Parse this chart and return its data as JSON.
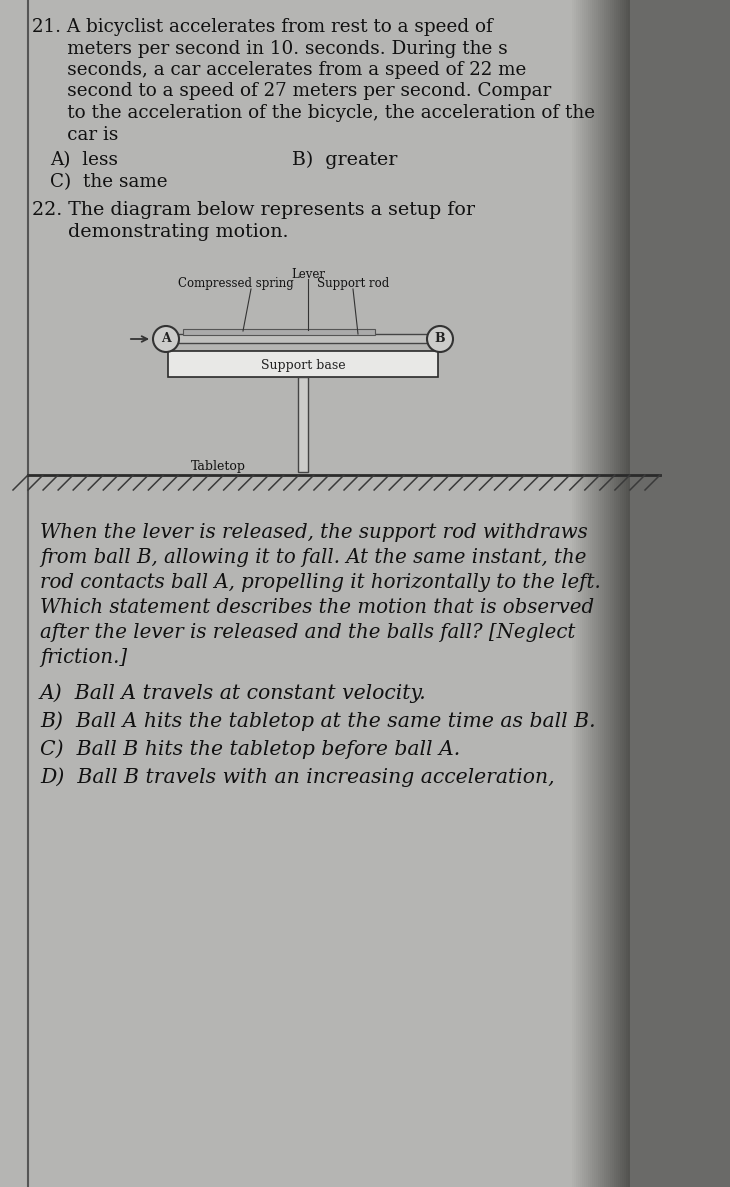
{
  "page_bg_left": "#b8b8b8",
  "page_bg_right": "#383838",
  "text_color": "#111111",
  "q21_lines": [
    "21. A bicyclist accelerates from rest to a speed of",
    "      meters per second in 10. seconds. During the s",
    "      seconds, a car accelerates from a speed of 22 me",
    "      second to a speed of 27 meters per second. Compar",
    "      to the acceleration of the bicycle, the acceleration of the",
    "      car is"
  ],
  "q21_answer_A": "A)  less",
  "q21_answer_B": "B)  greater",
  "q21_answer_C": "C)  the same",
  "q22_title_lines": [
    "22. The diagram below represents a setup for",
    "      demonstrating motion."
  ],
  "label_lever": "Lever",
  "label_support_rod": "Support rod",
  "label_compressed_spring": "Compressed spring",
  "label_support_base": "Support base",
  "label_tabletop": "Tabletop",
  "label_ball_A": "A",
  "label_ball_B": "B",
  "q22_body": [
    "When the lever is released, the support rod withdraws",
    "from ball B, allowing it to fall. At the same instant, the",
    "rod contacts ball A, propelling it horizontally to the left.",
    "Which statement describes the motion that is observed",
    "after the lever is released and the balls fall? [Neglect",
    "friction.]"
  ],
  "q22_answer_A": "A)  Ball A travels at constant velocity.",
  "q22_answer_B": "B)  Ball A hits the tabletop at the same time as ball B.",
  "q22_answer_C": "C)  Ball B hits the tabletop before ball A.",
  "q22_answer_D": "D)  Ball B travels with an increasing acceleration,"
}
